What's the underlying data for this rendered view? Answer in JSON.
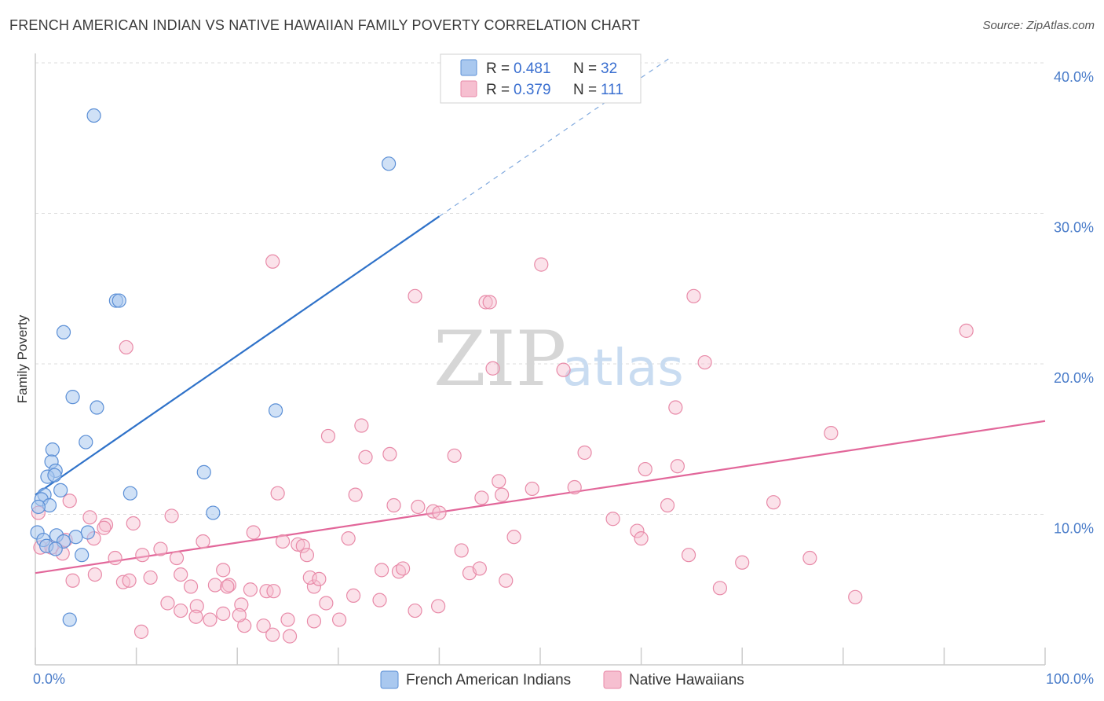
{
  "header": {
    "title": "FRENCH AMERICAN INDIAN VS NATIVE HAWAIIAN FAMILY POVERTY CORRELATION CHART",
    "source": "Source: ZipAtlas.com"
  },
  "watermark": {
    "zip": "ZIP",
    "atlas": "atlas"
  },
  "legend": {
    "rows": [
      {
        "r_label": "R =",
        "r_value": "0.481",
        "n_label": "N =",
        "n_value": "32"
      },
      {
        "r_label": "R =",
        "r_value": "0.379",
        "n_label": "N =",
        "n_value": "111"
      }
    ]
  },
  "bottom_legend": {
    "items": [
      {
        "label": "French American Indians"
      },
      {
        "label": "Native Hawaiians"
      }
    ]
  },
  "colors": {
    "blue_fill": "#a9c8ef",
    "blue_stroke": "#5b8fd6",
    "blue_line": "#2f72c9",
    "pink_fill": "#f6bfd0",
    "pink_stroke": "#e88aa8",
    "pink_line": "#e2679a",
    "grid": "#dddddd",
    "tick_label": "#4a7cc9"
  },
  "chart_data": {
    "type": "scatter",
    "title": "FRENCH AMERICAN INDIAN VS NATIVE HAWAIIAN FAMILY POVERTY CORRELATION CHART",
    "xlabel": "",
    "ylabel": "Family Poverty",
    "xlim": [
      0,
      100
    ],
    "ylim": [
      0,
      42
    ],
    "x_tick_labels": [
      "0.0%",
      "100.0%"
    ],
    "y_ticks": [
      10,
      20,
      30,
      40
    ],
    "y_tick_labels": [
      "10.0%",
      "20.0%",
      "30.0%",
      "40.0%"
    ],
    "grid": true,
    "legend_position": "top-center",
    "series": [
      {
        "name": "French American Indians",
        "color": "#a9c8ef",
        "trend": {
          "x0": 0,
          "y0": 11.3,
          "x1": 40,
          "y1": 29.8,
          "dash_to_x": 63,
          "dash_to_y": 40.4
        },
        "points": [
          [
            5.8,
            36.5
          ],
          [
            35.0,
            33.3
          ],
          [
            8.0,
            24.2
          ],
          [
            8.3,
            24.2
          ],
          [
            2.8,
            22.1
          ],
          [
            3.7,
            17.8
          ],
          [
            6.1,
            17.1
          ],
          [
            23.8,
            16.9
          ],
          [
            5.0,
            14.8
          ],
          [
            1.7,
            14.3
          ],
          [
            1.6,
            13.5
          ],
          [
            2.0,
            12.9
          ],
          [
            16.7,
            12.8
          ],
          [
            1.2,
            12.5
          ],
          [
            1.9,
            12.6
          ],
          [
            2.5,
            11.6
          ],
          [
            9.4,
            11.4
          ],
          [
            0.9,
            11.3
          ],
          [
            0.6,
            11.0
          ],
          [
            1.4,
            10.6
          ],
          [
            0.3,
            10.5
          ],
          [
            17.6,
            10.1
          ],
          [
            0.2,
            8.8
          ],
          [
            5.2,
            8.8
          ],
          [
            0.8,
            8.3
          ],
          [
            2.1,
            8.6
          ],
          [
            4.0,
            8.5
          ],
          [
            2.8,
            8.2
          ],
          [
            1.1,
            7.9
          ],
          [
            4.6,
            7.3
          ],
          [
            2.0,
            7.7
          ],
          [
            3.4,
            3.0
          ]
        ]
      },
      {
        "name": "Native Hawaiians",
        "color": "#f6bfd0",
        "trend": {
          "x0": 0,
          "y0": 6.1,
          "x1": 100,
          "y1": 16.2
        },
        "points": [
          [
            23.5,
            26.8
          ],
          [
            50.1,
            26.6
          ],
          [
            37.6,
            24.5
          ],
          [
            44.6,
            24.1
          ],
          [
            45.0,
            24.1
          ],
          [
            65.2,
            24.5
          ],
          [
            92.2,
            22.2
          ],
          [
            9.0,
            21.1
          ],
          [
            45.3,
            19.7
          ],
          [
            52.3,
            19.6
          ],
          [
            66.3,
            20.1
          ],
          [
            63.4,
            17.1
          ],
          [
            32.3,
            15.9
          ],
          [
            78.8,
            15.4
          ],
          [
            29.0,
            15.2
          ],
          [
            54.4,
            14.1
          ],
          [
            35.1,
            14.0
          ],
          [
            41.5,
            13.9
          ],
          [
            32.7,
            13.8
          ],
          [
            63.6,
            13.2
          ],
          [
            60.4,
            13.0
          ],
          [
            45.9,
            12.2
          ],
          [
            53.4,
            11.8
          ],
          [
            49.2,
            11.7
          ],
          [
            24.0,
            11.4
          ],
          [
            31.7,
            11.3
          ],
          [
            46.2,
            11.3
          ],
          [
            44.2,
            11.1
          ],
          [
            3.4,
            10.9
          ],
          [
            73.1,
            10.8
          ],
          [
            35.5,
            10.6
          ],
          [
            37.9,
            10.5
          ],
          [
            62.6,
            10.6
          ],
          [
            39.4,
            10.2
          ],
          [
            40.0,
            10.1
          ],
          [
            13.5,
            9.9
          ],
          [
            5.4,
            9.8
          ],
          [
            57.2,
            9.7
          ],
          [
            9.7,
            9.4
          ],
          [
            7.0,
            9.3
          ],
          [
            6.8,
            9.1
          ],
          [
            0.3,
            10.1
          ],
          [
            21.6,
            8.8
          ],
          [
            59.6,
            8.9
          ],
          [
            47.4,
            8.5
          ],
          [
            31.0,
            8.4
          ],
          [
            16.6,
            8.2
          ],
          [
            24.5,
            8.2
          ],
          [
            26.0,
            8.0
          ],
          [
            26.5,
            7.9
          ],
          [
            60.0,
            8.4
          ],
          [
            3.0,
            8.3
          ],
          [
            5.8,
            8.4
          ],
          [
            12.4,
            7.7
          ],
          [
            0.5,
            7.8
          ],
          [
            1.6,
            7.8
          ],
          [
            2.7,
            7.4
          ],
          [
            10.6,
            7.3
          ],
          [
            7.9,
            7.1
          ],
          [
            14.0,
            7.1
          ],
          [
            26.9,
            7.3
          ],
          [
            42.2,
            7.6
          ],
          [
            64.7,
            7.3
          ],
          [
            70.0,
            6.8
          ],
          [
            76.7,
            7.1
          ],
          [
            18.6,
            6.3
          ],
          [
            34.3,
            6.3
          ],
          [
            36.0,
            6.2
          ],
          [
            36.4,
            6.4
          ],
          [
            43.0,
            6.1
          ],
          [
            44.0,
            6.4
          ],
          [
            5.9,
            6.0
          ],
          [
            14.4,
            6.0
          ],
          [
            11.4,
            5.8
          ],
          [
            3.7,
            5.6
          ],
          [
            8.7,
            5.5
          ],
          [
            9.3,
            5.6
          ],
          [
            15.4,
            5.2
          ],
          [
            17.8,
            5.3
          ],
          [
            19.2,
            5.3
          ],
          [
            19.0,
            5.2
          ],
          [
            21.3,
            5.0
          ],
          [
            22.9,
            4.9
          ],
          [
            23.6,
            4.9
          ],
          [
            27.6,
            5.2
          ],
          [
            27.2,
            5.8
          ],
          [
            28.1,
            5.7
          ],
          [
            46.6,
            5.6
          ],
          [
            67.8,
            5.1
          ],
          [
            81.2,
            4.5
          ],
          [
            31.5,
            4.6
          ],
          [
            13.1,
            4.1
          ],
          [
            20.4,
            4.0
          ],
          [
            28.8,
            4.1
          ],
          [
            34.1,
            4.3
          ],
          [
            39.9,
            3.9
          ],
          [
            14.4,
            3.6
          ],
          [
            16.0,
            3.9
          ],
          [
            18.6,
            3.4
          ],
          [
            37.6,
            3.6
          ],
          [
            15.9,
            3.2
          ],
          [
            17.3,
            3.0
          ],
          [
            25.0,
            3.0
          ],
          [
            30.1,
            3.0
          ],
          [
            27.6,
            2.9
          ],
          [
            20.7,
            2.6
          ],
          [
            22.6,
            2.6
          ],
          [
            10.5,
            2.2
          ],
          [
            23.5,
            2.0
          ],
          [
            25.2,
            1.9
          ],
          [
            20.2,
            3.3
          ]
        ]
      }
    ]
  }
}
